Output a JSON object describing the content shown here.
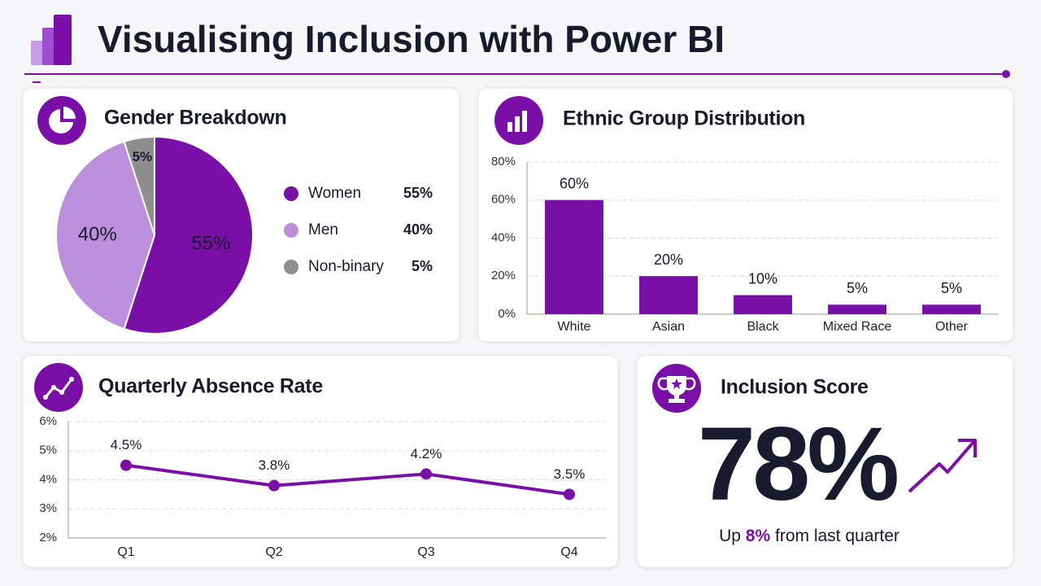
{
  "title": "Visualising Inclusion with Power BI",
  "chart_data": [
    {
      "type": "pie",
      "title": "Gender Breakdown",
      "categories": [
        "Women",
        "Men",
        "Non-binary"
      ],
      "values": [
        55,
        40,
        5
      ],
      "value_labels": [
        "55%",
        "40%",
        "5%"
      ],
      "colors": [
        "#7a0fa8",
        "#bb8fdc",
        "#8e8e8e"
      ]
    },
    {
      "type": "bar",
      "title": "Ethnic Group Distribution",
      "categories": [
        "White",
        "Asian",
        "Black",
        "Mixed Race",
        "Other"
      ],
      "values": [
        60,
        20,
        10,
        5,
        5
      ],
      "value_labels": [
        "60%",
        "20%",
        "10%",
        "5%",
        "5%"
      ],
      "color": "#7a0fa8",
      "ylim": [
        0,
        80
      ],
      "yticks": [
        {
          "value": 0,
          "label": "0%"
        },
        {
          "value": 20,
          "label": "20%"
        },
        {
          "value": 40,
          "label": "40%"
        },
        {
          "value": 60,
          "label": "60%"
        },
        {
          "value": 80,
          "label": "80%"
        }
      ],
      "grid": true
    },
    {
      "type": "line",
      "title": "Quarterly Absence Rate",
      "categories": [
        "Q1",
        "Q2",
        "Q3",
        "Q4"
      ],
      "values": [
        4.5,
        3.8,
        4.2,
        3.5
      ],
      "value_labels": [
        "4.5%",
        "3.8%",
        "4.2%",
        "3.5%"
      ],
      "color": "#7a0fa8",
      "ylim": [
        2,
        6
      ],
      "yticks": [
        {
          "value": 2,
          "label": "2%"
        },
        {
          "value": 3,
          "label": "3%"
        },
        {
          "value": 4,
          "label": "4%"
        },
        {
          "value": 5,
          "label": "5%"
        },
        {
          "value": 6,
          "label": "6%"
        }
      ],
      "grid": true
    }
  ],
  "score": {
    "title": "Inclusion Score",
    "value": "78%",
    "change_prefix": "Up",
    "change": "8%",
    "change_suffix": "from last quarter"
  }
}
